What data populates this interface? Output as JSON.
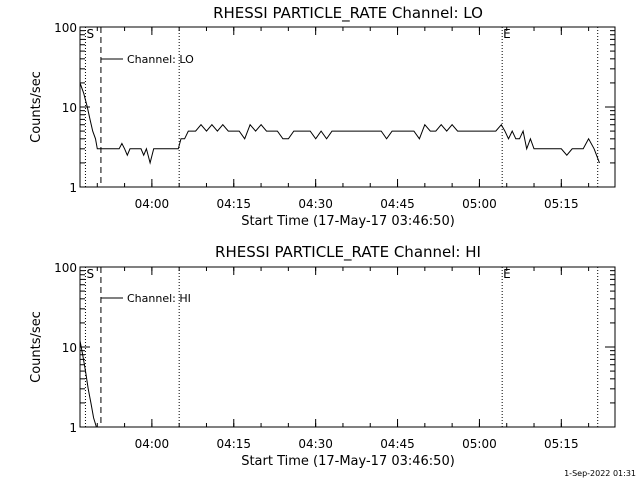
{
  "chart_data": [
    {
      "type": "line",
      "title": "RHESSI PARTICLE_RATE Channel: LO",
      "xlabel": "Start Time (17-May-17 03:46:50)",
      "ylabel": "Counts/sec",
      "yscale": "log",
      "ylim": [
        1,
        100
      ],
      "xlim": [
        "03:46:50",
        "05:24:50"
      ],
      "x_ticks": [
        "04:00",
        "04:15",
        "04:30",
        "04:45",
        "05:00",
        "05:15"
      ],
      "y_ticks": [
        "1",
        "10",
        "100"
      ],
      "legend": {
        "label": "Channel: LO",
        "placement": "top-left"
      },
      "markers": [
        {
          "label": "S",
          "time": "03:47:50",
          "style": "dotted"
        },
        {
          "label": "",
          "time": "03:50:40",
          "style": "dashed"
        },
        {
          "label": "",
          "time": "04:05:00",
          "style": "dotted"
        },
        {
          "label": "E",
          "time": "05:04:10",
          "style": "dotted"
        },
        {
          "label": "",
          "time": "05:21:40",
          "style": "dotted"
        }
      ],
      "series": [
        {
          "name": "",
          "x": [
            "03:46:50",
            "03:47:30",
            "03:48:10",
            "03:48:40",
            "03:49:10",
            "03:49:40",
            "03:50:00",
            "03:50:30",
            "03:51:00",
            "03:52:00",
            "03:53:00",
            "03:54:00",
            "03:54:30",
            "03:55:00",
            "03:55:30",
            "03:56:00",
            "03:56:40",
            "03:57:20",
            "03:58:00",
            "03:58:30",
            "03:59:00",
            "03:59:40",
            "04:00:20",
            "04:01:00",
            "04:02:00",
            "04:03:00",
            "04:04:00",
            "04:04:50",
            "04:05:20",
            "04:06:00",
            "04:06:40",
            "04:07:20",
            "04:08:00",
            "04:09:00",
            "04:10:00",
            "04:11:00",
            "04:12:00",
            "04:13:00",
            "04:14:00",
            "04:15:00",
            "04:16:00",
            "04:17:00",
            "04:18:00",
            "04:19:00",
            "04:20:00",
            "04:21:00",
            "04:22:00",
            "04:23:00",
            "04:24:00",
            "04:25:00",
            "04:26:00",
            "04:27:00",
            "04:28:00",
            "04:29:00",
            "04:30:00",
            "04:31:00",
            "04:32:00",
            "04:33:00",
            "04:34:00",
            "04:35:00",
            "04:36:00",
            "04:37:00",
            "04:38:00",
            "04:39:00",
            "04:40:00",
            "04:41:00",
            "04:42:00",
            "04:43:00",
            "04:44:00",
            "04:45:00",
            "04:46:00",
            "04:47:00",
            "04:48:00",
            "04:49:00",
            "04:50:00",
            "04:51:00",
            "04:52:00",
            "04:53:00",
            "04:54:00",
            "04:55:00",
            "04:56:00",
            "04:57:00",
            "04:58:00",
            "04:59:00",
            "05:00:00",
            "05:01:00",
            "05:02:00",
            "05:03:00",
            "05:04:00",
            "05:04:40",
            "05:05:20",
            "05:06:00",
            "05:06:40",
            "05:07:20",
            "05:08:00",
            "05:08:40",
            "05:09:20",
            "05:10:00",
            "05:10:40",
            "05:11:20",
            "05:12:00",
            "05:13:00",
            "05:14:00",
            "05:15:00",
            "05:16:00",
            "05:17:00",
            "05:17:40",
            "05:18:20",
            "05:19:00",
            "05:20:00",
            "05:21:00",
            "05:22:00"
          ],
          "values": [
            20,
            15,
            10,
            7,
            5,
            4,
            3,
            3,
            3,
            3,
            3,
            3,
            3.5,
            3,
            2.5,
            3,
            3,
            3,
            3,
            2.5,
            3,
            2,
            3,
            3,
            3,
            3,
            3,
            3,
            4,
            4,
            5,
            5,
            5,
            6,
            5,
            6,
            5,
            6,
            5,
            5,
            5,
            4,
            6,
            5,
            6,
            5,
            5,
            5,
            4,
            4,
            5,
            5,
            5,
            5,
            4,
            5,
            4,
            5,
            5,
            5,
            5,
            5,
            5,
            5,
            5,
            5,
            5,
            4,
            5,
            5,
            5,
            5,
            5,
            4,
            6,
            5,
            5,
            6,
            5,
            6,
            5,
            5,
            5,
            5,
            5,
            5,
            5,
            5,
            6,
            5,
            4,
            5,
            4,
            4,
            5,
            3,
            4,
            3,
            3,
            3,
            3,
            3,
            3,
            3,
            2.5,
            3,
            3,
            3,
            3,
            4,
            3,
            2
          ]
        }
      ]
    },
    {
      "type": "line",
      "title": "RHESSI PARTICLE_RATE Channel: HI",
      "xlabel": "Start Time (17-May-17 03:46:50)",
      "ylabel": "Counts/sec",
      "yscale": "log",
      "ylim": [
        1,
        100
      ],
      "xlim": [
        "03:46:50",
        "05:24:50"
      ],
      "x_ticks": [
        "04:00",
        "04:15",
        "04:30",
        "04:45",
        "05:00",
        "05:15"
      ],
      "y_ticks": [
        "1",
        "10",
        "100"
      ],
      "legend": {
        "label": "Channel: HI",
        "placement": "top-left"
      },
      "markers": [
        {
          "label": "S",
          "time": "03:47:50",
          "style": "dotted"
        },
        {
          "label": "",
          "time": "03:50:40",
          "style": "dashed"
        },
        {
          "label": "",
          "time": "04:05:00",
          "style": "dotted"
        },
        {
          "label": "E",
          "time": "05:04:10",
          "style": "dotted"
        },
        {
          "label": "",
          "time": "05:21:40",
          "style": "dotted"
        }
      ],
      "series": [
        {
          "name": "",
          "x": [
            "03:46:50",
            "03:47:20",
            "03:47:50",
            "03:48:20",
            "03:48:50",
            "03:49:20",
            "03:49:50"
          ],
          "values": [
            12,
            8,
            5,
            3,
            2,
            1.3,
            0.9
          ]
        }
      ]
    }
  ],
  "footer": {
    "timestamp": "1-Sep-2022 01:31"
  }
}
